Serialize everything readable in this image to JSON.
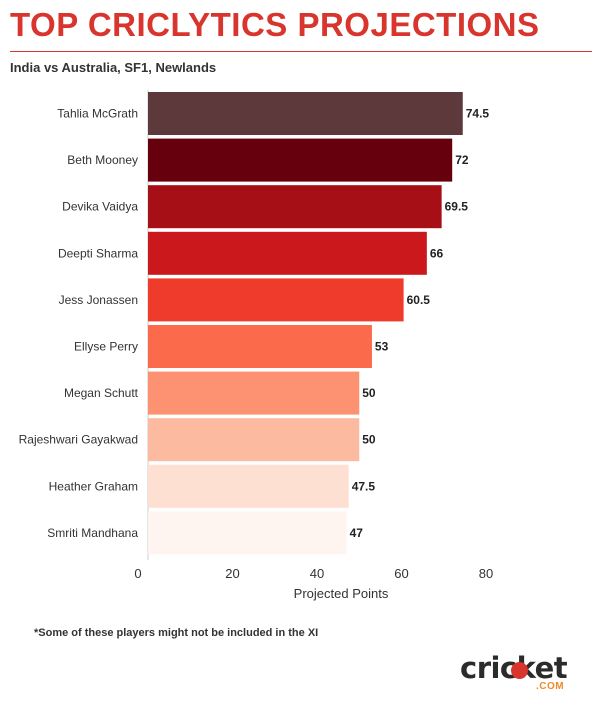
{
  "header": {
    "title": "TOP CRICLYTICS PROJECTIONS",
    "subtitle": "India vs Australia, SF1, Newlands"
  },
  "footnote": "*Some of these players might not be included in the XI",
  "logo": {
    "word": "cricket",
    "domain": ".COM",
    "accent": "#d7352e",
    "domain_color": "#f08a2a"
  },
  "chart_data": {
    "type": "bar",
    "orientation": "horizontal",
    "categories": [
      "Tahlia McGrath",
      "Beth Mooney",
      "Devika Vaidya",
      "Deepti Sharma",
      "Jess Jonassen",
      "Ellyse Perry",
      "Megan Schutt",
      "Rajeshwari Gayakwad",
      "Heather Graham",
      "Smriti Mandhana"
    ],
    "values": [
      74.5,
      72,
      69.5,
      66,
      60.5,
      53,
      50,
      50,
      47.5,
      47
    ],
    "value_labels": [
      "74.5",
      "72",
      "69.5",
      "66",
      "60.5",
      "53",
      "50",
      "50",
      "47.5",
      "47"
    ],
    "colors": [
      "#5e393b",
      "#67000d",
      "#a50f15",
      "#cb181d",
      "#ef3b2c",
      "#fb6a4a",
      "#fc9272",
      "#fcbba1",
      "#fee0d2",
      "#fff5f0"
    ],
    "title": "TOP CRICLYTICS PROJECTIONS",
    "xlabel": "Projected Points",
    "ylabel": "",
    "xlim": [
      0,
      80
    ],
    "xticks": [
      0,
      20,
      40,
      60,
      80
    ],
    "xtick_labels": [
      "0",
      "20",
      "40",
      "60",
      "80"
    ],
    "grid": false
  }
}
